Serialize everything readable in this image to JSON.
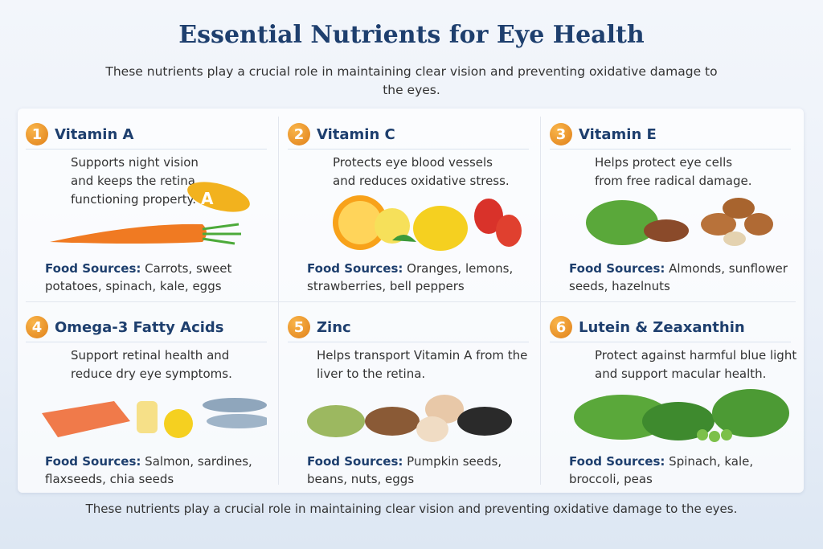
{
  "title": "Essential Nutrients for Eye Health",
  "subtitle": "These nutrients play a crucial role in maintaining clear vision and preventing oxidative damage to the eyes.",
  "food_label": "Food Sources:",
  "nutrients": [
    {
      "num": "1",
      "name": "Vitamin A",
      "desc": "Supports night vision and keeps the retina functioning property.",
      "foods": "Carrots, sweet potatoes, spinach, kale, eggs",
      "capsule_letter": "A"
    },
    {
      "num": "2",
      "name": "Vitamin C",
      "desc": "Protects eye blood vessels and reduces oxidative stress.",
      "foods": "Oranges, lemons, strawberries, bell peppers"
    },
    {
      "num": "3",
      "name": "Vitamin E",
      "desc": "Helps protect eye cells from free radical damage.",
      "foods": "Almonds, sunflower seeds, hazelnuts"
    },
    {
      "num": "4",
      "name": "Omega-3 Fatty Acids",
      "desc": "Support retinal health and reduce dry eye symptoms.",
      "foods": "Salmon, sardines, flaxseeds, chia seeds"
    },
    {
      "num": "5",
      "name": "Zinc",
      "desc": "Helps transport Vitamin A from the liver to the retina.",
      "foods": "Pumpkin seeds, beans, nuts, eggs"
    },
    {
      "num": "6",
      "name": "Lutein & Zeaxanthin",
      "desc": "Protect against harmful blue light and support macular health.",
      "foods": "Spinach, kale, broccoli, peas"
    }
  ],
  "footer": "These nutrients play a crucial role in maintaining clear vision and preventing oxidative damage to the eyes."
}
